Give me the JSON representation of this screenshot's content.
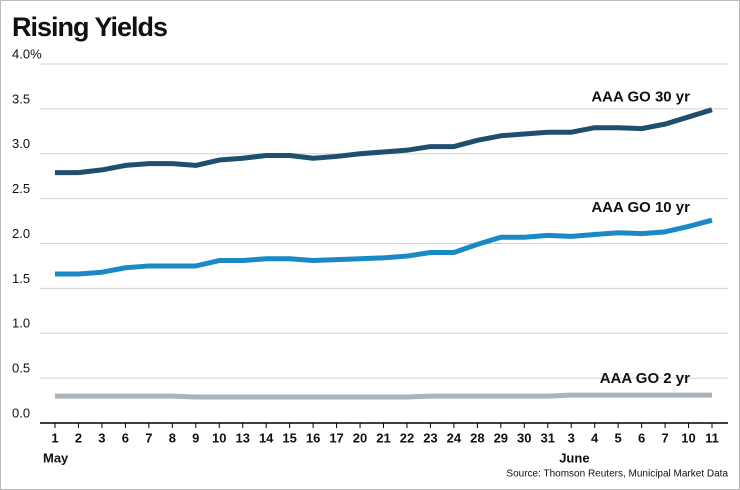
{
  "chart_data": {
    "type": "line",
    "title": "Rising Yields",
    "source": "Source: Thomson Reuters, Municipal Market Data",
    "categories": [
      "1",
      "2",
      "3",
      "6",
      "7",
      "8",
      "9",
      "10",
      "13",
      "14",
      "15",
      "16",
      "17",
      "20",
      "21",
      "22",
      "23",
      "24",
      "28",
      "29",
      "30",
      "31",
      "3",
      "4",
      "5",
      "6",
      "7",
      "10",
      "11"
    ],
    "months": [
      "May",
      "June"
    ],
    "series": [
      {
        "name": "AAA GO 30 yr",
        "color": "#1f4e6e",
        "values": [
          2.79,
          2.79,
          2.82,
          2.87,
          2.89,
          2.89,
          2.87,
          2.93,
          2.95,
          2.98,
          2.98,
          2.95,
          2.97,
          3.0,
          3.02,
          3.04,
          3.08,
          3.08,
          3.15,
          3.2,
          3.22,
          3.24,
          3.24,
          3.29,
          3.29,
          3.28,
          3.33,
          3.41,
          3.49
        ]
      },
      {
        "name": "AAA GO 10 yr",
        "color": "#1a8ac6",
        "values": [
          1.66,
          1.66,
          1.68,
          1.73,
          1.75,
          1.75,
          1.75,
          1.81,
          1.81,
          1.83,
          1.83,
          1.81,
          1.82,
          1.83,
          1.84,
          1.86,
          1.9,
          1.9,
          1.99,
          2.07,
          2.07,
          2.09,
          2.08,
          2.1,
          2.12,
          2.11,
          2.13,
          2.19,
          2.26
        ]
      },
      {
        "name": "AAA GO 2 yr",
        "color": "#a9b4bd",
        "values": [
          0.3,
          0.3,
          0.3,
          0.3,
          0.3,
          0.3,
          0.29,
          0.29,
          0.29,
          0.29,
          0.29,
          0.29,
          0.29,
          0.29,
          0.29,
          0.29,
          0.3,
          0.3,
          0.3,
          0.3,
          0.3,
          0.3,
          0.31,
          0.31,
          0.31,
          0.31,
          0.31,
          0.31,
          0.31
        ]
      }
    ],
    "ylim": [
      0,
      4
    ],
    "yticks": [
      {
        "value": 0,
        "label": "0.0"
      },
      0.5,
      {
        "value": 1,
        "label": "1.0"
      },
      1.5,
      {
        "value": 2,
        "label": "2.0"
      },
      2.5,
      {
        "value": 3,
        "label": "3.0"
      },
      3.5,
      {
        "value": 4,
        "label": "4.0%"
      }
    ],
    "grid": true
  }
}
